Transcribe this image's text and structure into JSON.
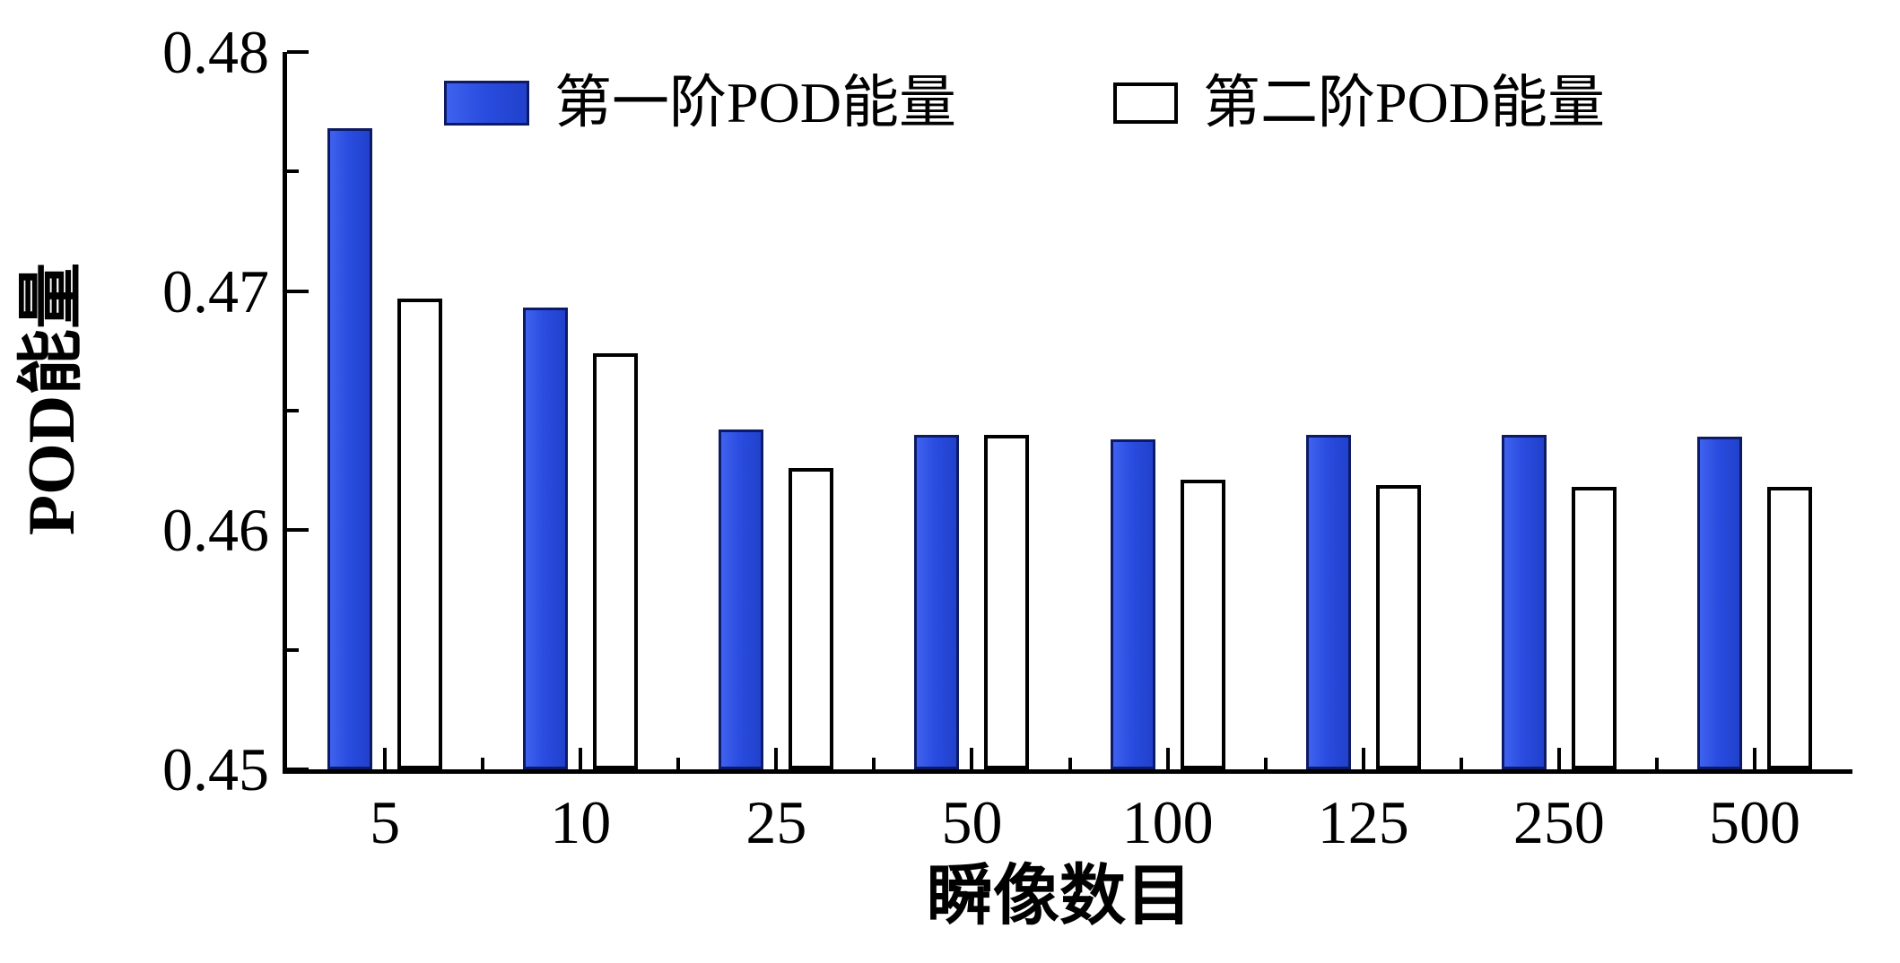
{
  "chart_data": {
    "type": "bar",
    "title": "",
    "categories": [
      "5",
      "10",
      "25",
      "50",
      "100",
      "125",
      "250",
      "500"
    ],
    "series": [
      {
        "name": "第一阶POD能量",
        "style": "filled",
        "color": "#2a4de0",
        "values": [
          0.4768,
          0.4693,
          0.4642,
          0.464,
          0.4638,
          0.464,
          0.464,
          0.4639
        ]
      },
      {
        "name": "第二阶POD能量",
        "style": "open",
        "color": "#ffffff",
        "values": [
          0.4697,
          0.4674,
          0.4626,
          0.464,
          0.4621,
          0.4619,
          0.4618,
          0.4618
        ]
      }
    ],
    "xlabel": "瞬像数目",
    "ylabel": "POD能量",
    "ylim": [
      0.45,
      0.48
    ],
    "yticks": [
      0.45,
      0.46,
      0.47,
      0.48
    ],
    "y_minor_step": 0.005,
    "grid": false,
    "legend_position": "top-inside"
  }
}
